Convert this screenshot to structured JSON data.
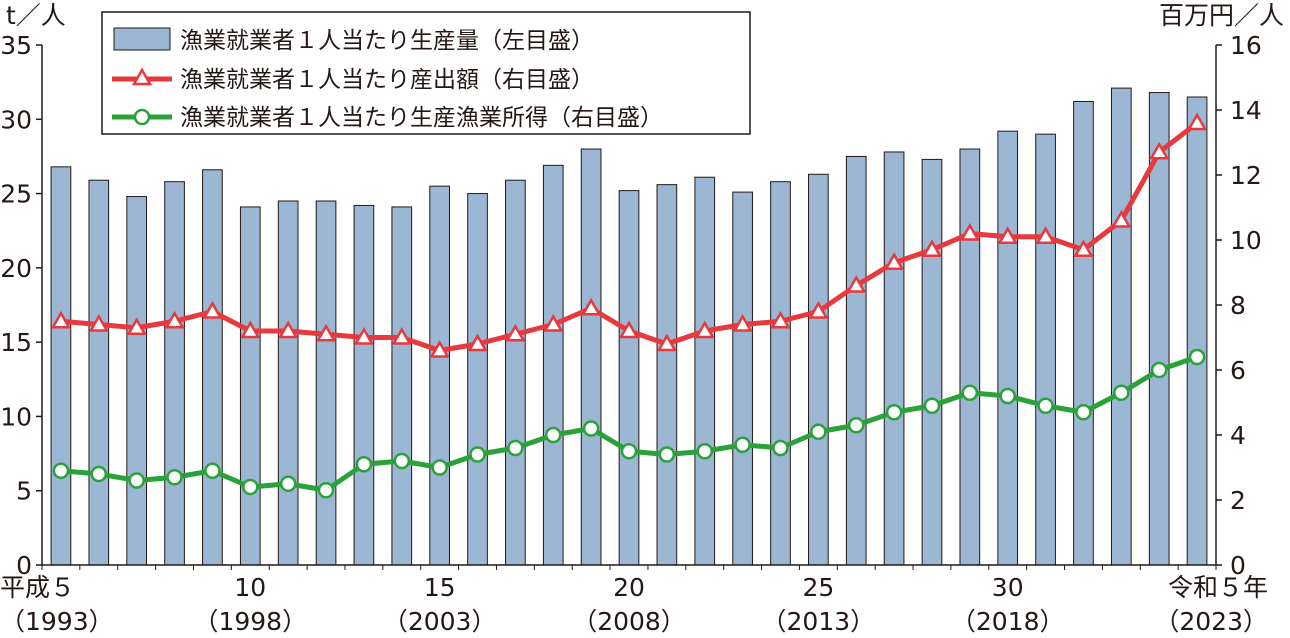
{
  "chart_data": {
    "type": "bar",
    "y_left_unit": "t／人",
    "y_right_unit": "百万円／人",
    "y_left_ticks": [
      "0",
      "5",
      "10",
      "15",
      "20",
      "25",
      "30",
      "35"
    ],
    "y_right_ticks": [
      "0",
      "2",
      "4",
      "6",
      "8",
      "10",
      "12",
      "14",
      "16"
    ],
    "ylim_left": [
      0,
      35
    ],
    "ylim_right": [
      0,
      16
    ],
    "x_years": [
      1993,
      1994,
      1995,
      1996,
      1997,
      1998,
      1999,
      2000,
      2001,
      2002,
      2003,
      2004,
      2005,
      2006,
      2007,
      2008,
      2009,
      2010,
      2011,
      2012,
      2013,
      2014,
      2015,
      2016,
      2017,
      2018,
      2019,
      2020,
      2021,
      2022,
      2023
    ],
    "x_tick_labels": [
      {
        "index": 0,
        "line1": "平成５",
        "line2": "（1993）"
      },
      {
        "index": 5,
        "line1": "10",
        "line2": "（1998）"
      },
      {
        "index": 10,
        "line1": "15",
        "line2": "（2003）"
      },
      {
        "index": 15,
        "line1": "20",
        "line2": "（2008）"
      },
      {
        "index": 20,
        "line1": "25",
        "line2": "（2013）"
      },
      {
        "index": 25,
        "line1": "30",
        "line2": "（2018）"
      },
      {
        "index": 30,
        "line1": "令和５年",
        "line2": "（2023）"
      }
    ],
    "series": [
      {
        "name": "漁業就業者１人当たり生産量（左目盛）",
        "type": "bar",
        "axis": "left",
        "color": "#9bb7d4",
        "values": [
          26.8,
          25.9,
          24.8,
          25.8,
          26.6,
          24.1,
          24.5,
          24.5,
          24.2,
          24.1,
          25.5,
          25.0,
          25.9,
          26.9,
          28.0,
          25.2,
          25.6,
          26.1,
          25.1,
          25.8,
          26.3,
          27.5,
          27.8,
          27.3,
          28.0,
          29.2,
          29.0,
          31.2,
          32.1,
          31.8,
          31.5
        ]
      },
      {
        "name": "漁業就業者１人当たり産出額（右目盛）",
        "type": "line",
        "axis": "right",
        "color": "#e8393e",
        "marker": "triangle",
        "values": [
          7.5,
          7.4,
          7.3,
          7.5,
          7.8,
          7.2,
          7.2,
          7.1,
          7.0,
          7.0,
          6.6,
          6.8,
          7.1,
          7.4,
          7.9,
          7.2,
          6.8,
          7.2,
          7.4,
          7.5,
          7.8,
          8.6,
          9.3,
          9.7,
          10.2,
          10.1,
          10.1,
          9.7,
          10.6,
          12.7,
          13.6
        ]
      },
      {
        "name": "漁業就業者１人当たり生産漁業所得（右目盛）",
        "type": "line",
        "axis": "right",
        "color": "#2aa23a",
        "marker": "circle",
        "values": [
          2.9,
          2.8,
          2.6,
          2.7,
          2.9,
          2.4,
          2.5,
          2.3,
          3.1,
          3.2,
          3.0,
          3.4,
          3.6,
          4.0,
          4.2,
          3.5,
          3.4,
          3.5,
          3.7,
          3.6,
          4.1,
          4.3,
          4.7,
          4.9,
          5.3,
          5.2,
          4.9,
          4.7,
          5.3,
          6.0,
          6.4
        ]
      }
    ]
  }
}
